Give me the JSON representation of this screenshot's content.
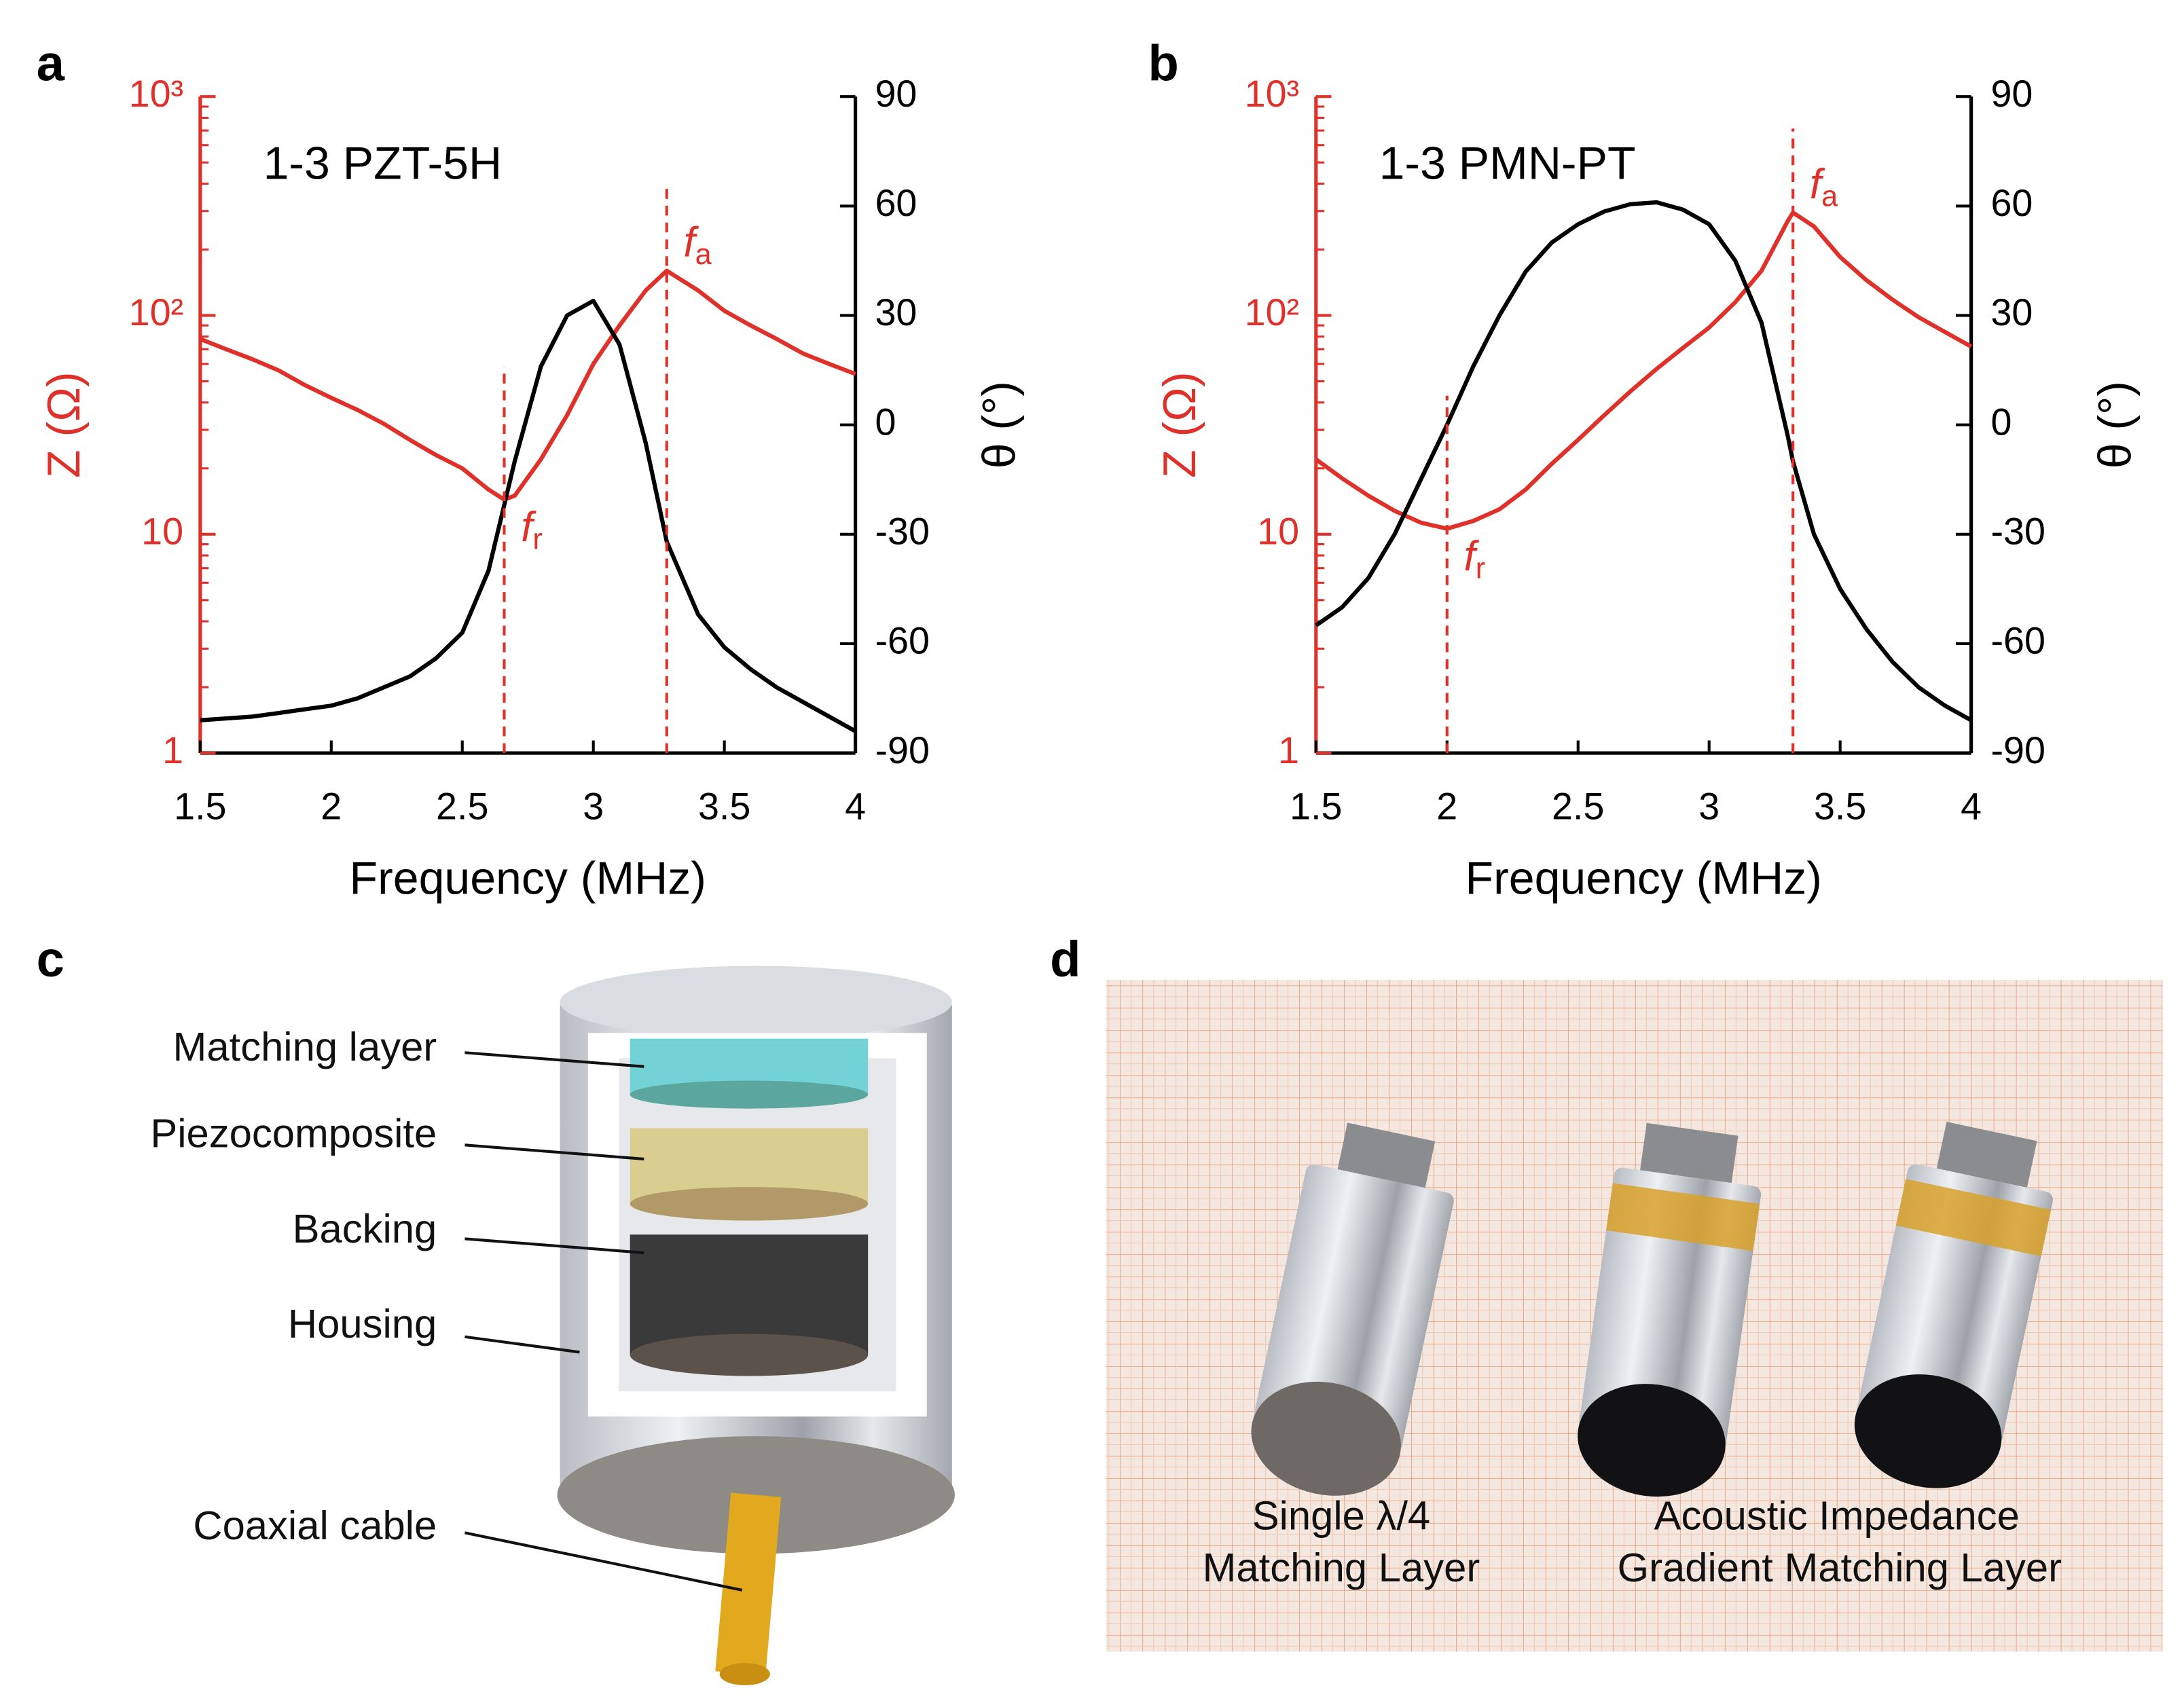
{
  "panels": [
    "a",
    "b",
    "c",
    "d"
  ],
  "chart_data": [
    {
      "type": "line",
      "annotation": "1-3 PZT-5H",
      "xlabel": "Frequency (MHz)",
      "ylabel": "Z (Ω)",
      "y2label": "θ (°)",
      "xlim": [
        1.5,
        4
      ],
      "xticks": [
        1.5,
        2,
        2.5,
        3,
        3.5,
        4
      ],
      "ylim": [
        1,
        1000
      ],
      "yscale": "log",
      "yticks": [
        1,
        10,
        {
          "value": 100,
          "label": "10²"
        },
        {
          "value": 1000,
          "label": "10³"
        }
      ],
      "y2lim": [
        -90,
        90
      ],
      "y2ticks": [
        -90,
        -60,
        -30,
        0,
        30,
        60,
        90
      ],
      "x": [
        1.5,
        1.6,
        1.7,
        1.8,
        1.9,
        2.0,
        2.1,
        2.2,
        2.3,
        2.4,
        2.5,
        2.6,
        2.66,
        2.7,
        2.8,
        2.9,
        3.0,
        3.1,
        3.2,
        3.28,
        3.4,
        3.5,
        3.6,
        3.7,
        3.8,
        3.9,
        4.0
      ],
      "series": [
        {
          "color": "#e0302a",
          "values": [
            78,
            70,
            63,
            56,
            48,
            42,
            37,
            32,
            27,
            23,
            20,
            16,
            14.4,
            15,
            22,
            35,
            60,
            90,
            130,
            160,
            130,
            105,
            90,
            78,
            67,
            60,
            54
          ]
        },
        {
          "color": "#000000",
          "axis": "y2",
          "values": [
            -81,
            -80.5,
            -80,
            -79,
            -78,
            -77,
            -75,
            -72,
            -69,
            -64,
            -57,
            -40,
            -22,
            -10,
            16,
            30,
            34,
            22,
            -5,
            -32,
            -52,
            -61,
            -67,
            -72,
            -76,
            -80,
            -84
          ]
        }
      ],
      "markers": [
        {
          "symbol": "f",
          "subscript": "r",
          "x": 2.66
        },
        {
          "symbol": "f",
          "subscript": "a",
          "x": 3.28
        }
      ]
    },
    {
      "type": "line",
      "annotation": "1-3 PMN-PT",
      "xlabel": "Frequency (MHz)",
      "ylabel": "Z (Ω)",
      "y2label": "θ (°)",
      "xlim": [
        1.5,
        4
      ],
      "xticks": [
        1.5,
        2,
        2.5,
        3,
        3.5,
        4
      ],
      "ylim": [
        1,
        1000
      ],
      "yscale": "log",
      "yticks": [
        1,
        10,
        {
          "value": 100,
          "label": "10²"
        },
        {
          "value": 1000,
          "label": "10³"
        }
      ],
      "y2lim": [
        -90,
        90
      ],
      "y2ticks": [
        -90,
        -60,
        -30,
        0,
        30,
        60,
        90
      ],
      "x": [
        1.5,
        1.6,
        1.7,
        1.8,
        1.9,
        2.0,
        2.1,
        2.2,
        2.3,
        2.4,
        2.5,
        2.6,
        2.7,
        2.8,
        2.9,
        3.0,
        3.1,
        3.2,
        3.3,
        3.32,
        3.4,
        3.5,
        3.6,
        3.7,
        3.8,
        3.9,
        4.0
      ],
      "series": [
        {
          "color": "#e0302a",
          "values": [
            22,
            18,
            15,
            12.8,
            11.3,
            10.6,
            11.5,
            13,
            16,
            21,
            27,
            35,
            45,
            57,
            71,
            88,
            115,
            160,
            270,
            295,
            255,
            185,
            145,
            118,
            98,
            84,
            72
          ]
        },
        {
          "color": "#000000",
          "axis": "y2",
          "values": [
            -55,
            -50,
            -42,
            -30,
            -15,
            0,
            16,
            30,
            42,
            50,
            55,
            58.5,
            60.5,
            61,
            59,
            55,
            45,
            28,
            -3,
            -10,
            -30,
            -45,
            -56,
            -65,
            -72,
            -77,
            -81
          ]
        }
      ],
      "markers": [
        {
          "symbol": "f",
          "subscript": "r",
          "x": 2.0
        },
        {
          "symbol": "f",
          "subscript": "a",
          "x": 3.32
        }
      ]
    }
  ],
  "diagram": {
    "labels": [
      "Matching layer",
      "Piezocomposite",
      "Backing",
      "Housing",
      "Coaxial cable"
    ]
  },
  "photo": {
    "captions": [
      [
        "Single λ/4",
        "Matching Layer"
      ],
      [
        "Acoustic Impedance",
        "Gradient Matching Layer"
      ]
    ]
  }
}
